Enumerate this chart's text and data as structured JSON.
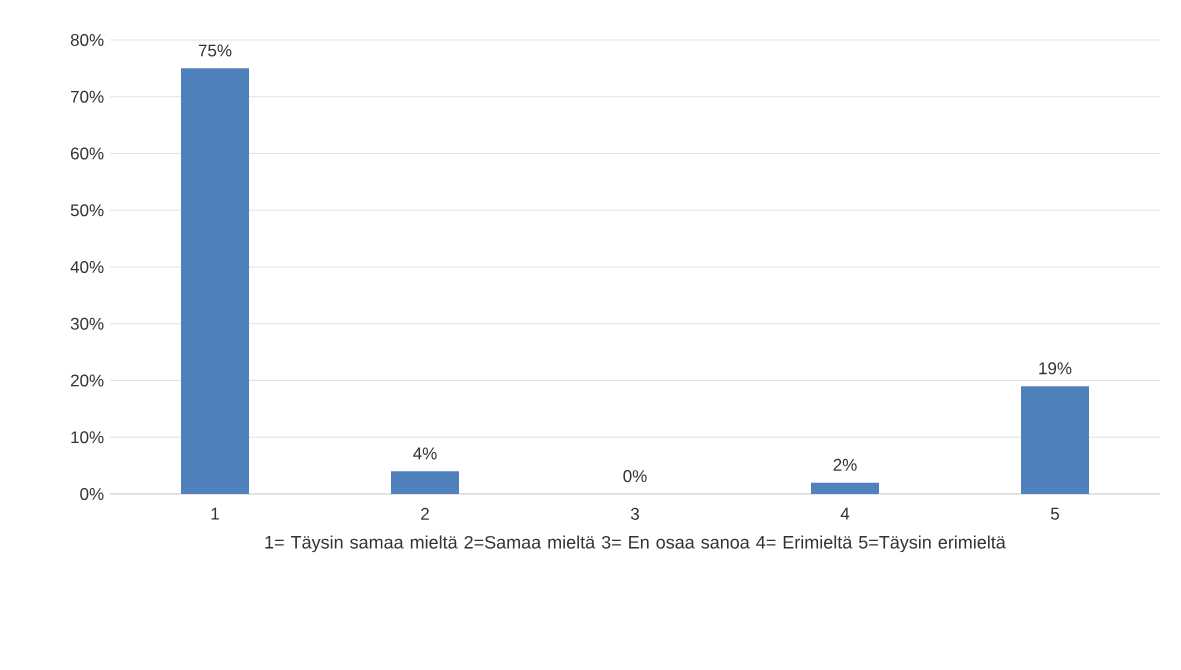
{
  "chart_data": {
    "type": "bar",
    "categories": [
      "1",
      "2",
      "3",
      "4",
      "5"
    ],
    "values": [
      75,
      4,
      0,
      2,
      19
    ],
    "value_labels": [
      "75%",
      "4%",
      "0%",
      "2%",
      "19%"
    ],
    "color": "#4f81bd",
    "xlabel": "1= Täysin samaa mieltä  2=Samaa mieltä 3= En osaa sanoa 4= Erimieltä 5=Täysin erimieltä",
    "ylim": [
      0,
      80
    ],
    "yticks": [
      {
        "value": 0,
        "label": "0%"
      },
      {
        "value": 10,
        "label": "10%"
      },
      {
        "value": 20,
        "label": "20%"
      },
      {
        "value": 30,
        "label": "30%"
      },
      {
        "value": 40,
        "label": "40%"
      },
      {
        "value": 50,
        "label": "50%"
      },
      {
        "value": 60,
        "label": "60%"
      },
      {
        "value": 70,
        "label": "70%"
      },
      {
        "value": 80,
        "label": "80%"
      }
    ],
    "grid": "y"
  }
}
